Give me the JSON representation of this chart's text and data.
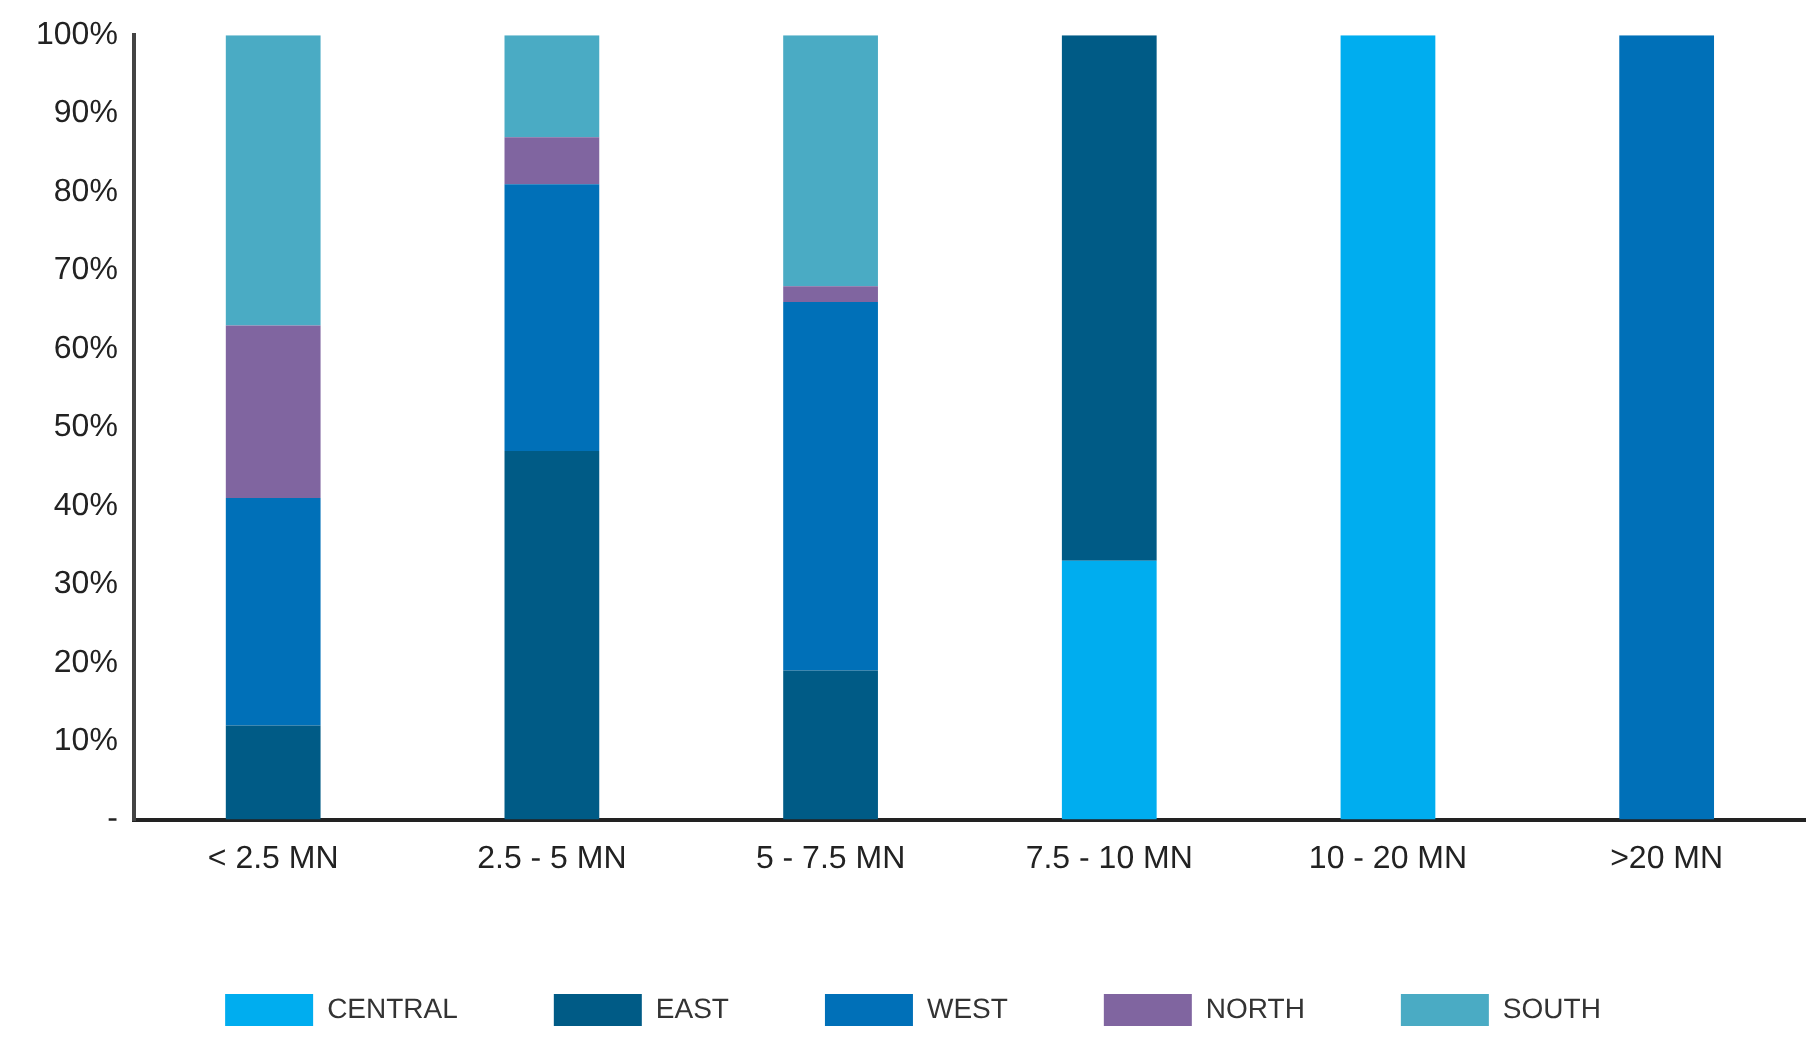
{
  "chart_data": {
    "type": "bar",
    "stacked": true,
    "categories": [
      "< 2.5 MN",
      "2.5 - 5 MN",
      "5 - 7.5 MN",
      "7.5 - 10 MN",
      "10 - 20 MN",
      ">20 MN"
    ],
    "series": [
      {
        "name": "CENTRAL",
        "color": "#00adef",
        "values": [
          0,
          0,
          0,
          33,
          100,
          0
        ]
      },
      {
        "name": "EAST",
        "color": "#005b86",
        "values": [
          12,
          47,
          19,
          67,
          0,
          0
        ]
      },
      {
        "name": "WEST",
        "color": "#0070b8",
        "values": [
          29,
          34,
          47,
          0,
          0,
          100
        ]
      },
      {
        "name": "NORTH",
        "color": "#8065a0",
        "values": [
          22,
          6,
          2,
          0,
          0,
          0
        ]
      },
      {
        "name": "SOUTH",
        "color": "#4aabc4",
        "values": [
          37,
          13,
          32,
          0,
          0,
          0
        ]
      }
    ],
    "ylim": [
      0,
      100
    ],
    "yticks": [
      {
        "value": 0,
        "label": "-"
      },
      {
        "value": 10,
        "label": "10%"
      },
      {
        "value": 20,
        "label": "20%"
      },
      {
        "value": 30,
        "label": "30%"
      },
      {
        "value": 40,
        "label": "40%"
      },
      {
        "value": 50,
        "label": "50%"
      },
      {
        "value": 60,
        "label": "60%"
      },
      {
        "value": 70,
        "label": "70%"
      },
      {
        "value": 80,
        "label": "80%"
      },
      {
        "value": 90,
        "label": "90%"
      },
      {
        "value": 100,
        "label": "100%"
      }
    ],
    "grid": false,
    "legend": "bottom"
  }
}
